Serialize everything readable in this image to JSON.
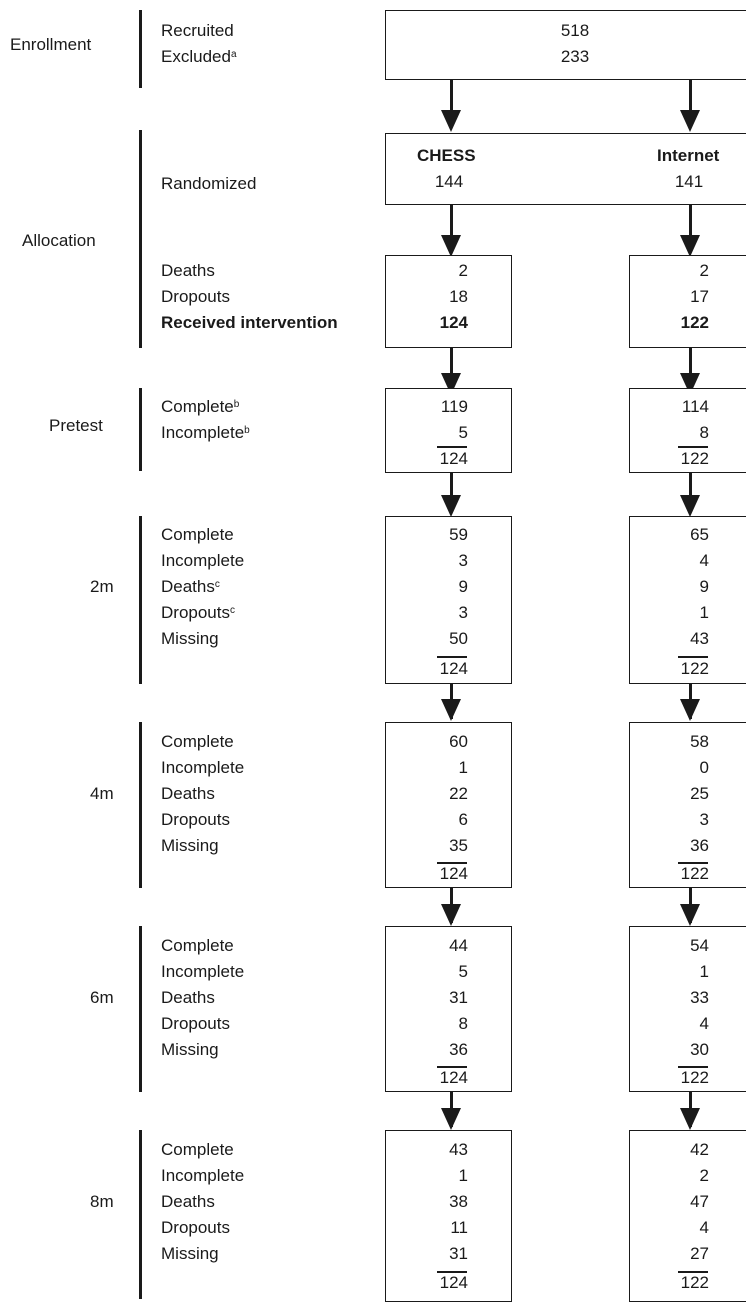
{
  "enrollment": {
    "stage": "Enrollment",
    "recruited_label": "Recruited",
    "recruited_value": "518",
    "excluded_label": "Excluded",
    "excluded_sup": "a",
    "excluded_value": "233"
  },
  "allocation": {
    "stage": "Allocation",
    "randomized_label": "Randomized",
    "chess_header": "CHESS",
    "internet_header": "Internet",
    "chess_randomized": "144",
    "internet_randomized": "141",
    "deaths_label": "Deaths",
    "dropouts_label": "Dropouts",
    "received_label": "Received intervention",
    "chess": {
      "deaths": "2",
      "dropouts": "18",
      "received": "124"
    },
    "internet": {
      "deaths": "2",
      "dropouts": "17",
      "received": "122"
    }
  },
  "pretest": {
    "stage": "Pretest",
    "complete_label": "Complete",
    "complete_sup": "b",
    "incomplete_label": "Incomplete",
    "incomplete_sup": "b",
    "chess": {
      "complete": "119",
      "incomplete": "5",
      "total": "124"
    },
    "internet": {
      "complete": "114",
      "incomplete": "8",
      "total": "122"
    }
  },
  "m2": {
    "stage": "2m",
    "labels": [
      "Complete",
      "Incomplete",
      "Deaths",
      "Dropouts",
      "Missing"
    ],
    "deaths_sup": "c",
    "dropouts_sup": "c",
    "chess": [
      "59",
      "3",
      "9",
      "3",
      "50"
    ],
    "chess_total": "124",
    "internet": [
      "65",
      "4",
      "9",
      "1",
      "43"
    ],
    "internet_total": "122"
  },
  "m4": {
    "stage": "4m",
    "labels": [
      "Complete",
      "Incomplete",
      "Deaths",
      "Dropouts",
      "Missing"
    ],
    "chess": [
      "60",
      "1",
      "22",
      "6",
      "35"
    ],
    "chess_total": "124",
    "internet": [
      "58",
      "0",
      "25",
      "3",
      "36"
    ],
    "internet_total": "122"
  },
  "m6": {
    "stage": "6m",
    "labels": [
      "Complete",
      "Incomplete",
      "Deaths",
      "Dropouts",
      "Missing"
    ],
    "chess": [
      "44",
      "5",
      "31",
      "8",
      "36"
    ],
    "chess_total": "124",
    "internet": [
      "54",
      "1",
      "33",
      "4",
      "30"
    ],
    "internet_total": "122"
  },
  "m8": {
    "stage": "8m",
    "labels": [
      "Complete",
      "Incomplete",
      "Deaths",
      "Dropouts",
      "Missing"
    ],
    "chess": [
      "43",
      "1",
      "38",
      "11",
      "31"
    ],
    "chess_total": "124",
    "internet": [
      "42",
      "2",
      "47",
      "4",
      "27"
    ],
    "internet_total": "122"
  }
}
